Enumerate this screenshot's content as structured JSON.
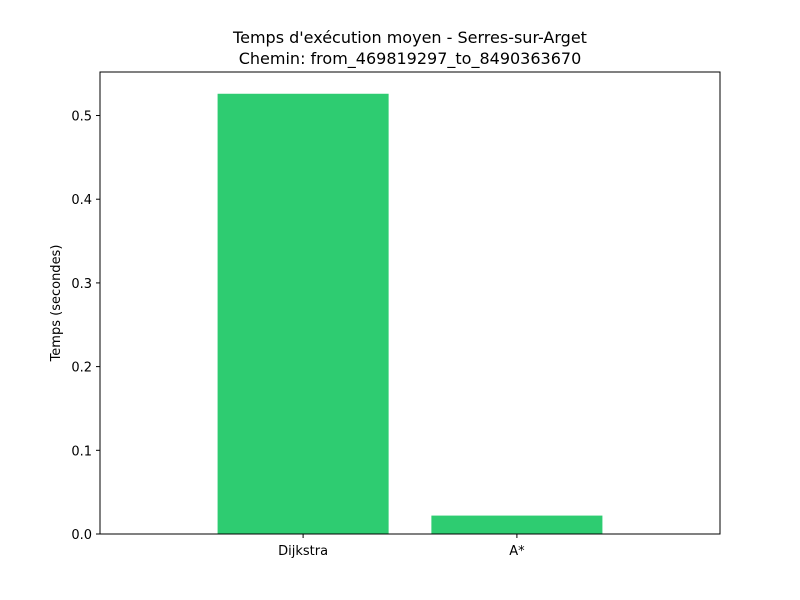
{
  "chart_data": {
    "type": "bar",
    "title": "Temps d'exécution moyen - Serres-sur-Arget",
    "subtitle": "Chemin: from_469819297_to_8490363670",
    "xlabel": "",
    "ylabel": "Temps (secondes)",
    "categories": [
      "Dijkstra",
      "A*"
    ],
    "values": [
      0.526,
      0.022
    ],
    "ylim": [
      0,
      0.552
    ],
    "yticks": [
      0.0,
      0.1,
      0.2,
      0.3,
      0.4,
      0.5
    ],
    "ytick_labels": [
      "0.0",
      "0.1",
      "0.2",
      "0.3",
      "0.4",
      "0.5"
    ],
    "bar_color": "#2ecc71",
    "grid": false,
    "legend": "none"
  }
}
